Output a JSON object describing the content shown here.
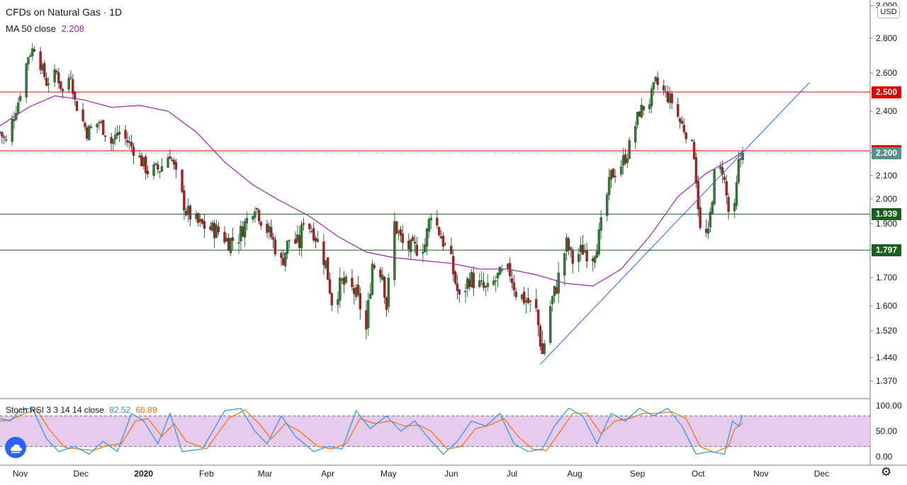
{
  "chart_header": {
    "title": "CFDs on Natural Gas · 1D",
    "ma_label": "MA 50 close",
    "ma_value": "2.208",
    "osc_label": "Stoch RSI 3 3 14 14 close",
    "osc_k": "82.52",
    "osc_d": "66.89",
    "currency": "USD"
  },
  "colors": {
    "up": "#26a69a",
    "up_body": "#2e7d32",
    "down": "#b71c1c",
    "ma": "#9c27b0",
    "trend": "#2962ff",
    "res_red": "#e00000",
    "sup_green": "#1b5e20",
    "price_tag": "#56918a",
    "stoch_k": "#2196f3",
    "stoch_d": "#ff6d00",
    "stoch_band": "#e1bee7"
  },
  "chart_data": [
    {
      "type": "candlestick",
      "title": "CFDs on Natural Gas · 1D",
      "y_ticks": [
        1.37,
        1.44,
        1.52,
        1.6,
        1.7,
        1.8,
        1.9,
        2.0,
        2.1,
        2.2,
        2.4,
        2.6,
        2.8,
        3.0
      ],
      "x_month_ticks": [
        {
          "label": "Nov",
          "month": "2019-11"
        },
        {
          "label": "Dec",
          "month": "2019-12"
        },
        {
          "label": "2020",
          "month": "2020-01"
        },
        {
          "label": "Feb",
          "month": "2020-02"
        },
        {
          "label": "Mar",
          "month": "2020-03"
        },
        {
          "label": "Apr",
          "month": "2020-04"
        },
        {
          "label": "May",
          "month": "2020-05"
        },
        {
          "label": "Jun",
          "month": "2020-06"
        },
        {
          "label": "Jul",
          "month": "2020-07"
        },
        {
          "label": "Aug",
          "month": "2020-08"
        },
        {
          "label": "Sep",
          "month": "2020-09"
        },
        {
          "label": "Oct",
          "month": "2020-10"
        },
        {
          "label": "Nov",
          "month": "2020-11"
        },
        {
          "label": "Dec",
          "month": "2020-12"
        }
      ],
      "price_close_path": [
        [
          "2019-10-22",
          2.3
        ],
        [
          "2019-10-25",
          2.25
        ],
        [
          "2019-10-31",
          2.45
        ],
        [
          "2019-11-05",
          2.7
        ],
        [
          "2019-11-08",
          2.75
        ],
        [
          "2019-11-14",
          2.55
        ],
        [
          "2019-11-19",
          2.6
        ],
        [
          "2019-11-22",
          2.5
        ],
        [
          "2019-11-26",
          2.6
        ],
        [
          "2019-11-28",
          2.45
        ],
        [
          "2019-12-04",
          2.3
        ],
        [
          "2019-12-10",
          2.35
        ],
        [
          "2019-12-16",
          2.25
        ],
        [
          "2019-12-20",
          2.3
        ],
        [
          "2019-12-27",
          2.22
        ],
        [
          "2020-01-03",
          2.12
        ],
        [
          "2020-01-09",
          2.13
        ],
        [
          "2020-01-14",
          2.2
        ],
        [
          "2020-01-17",
          2.1
        ],
        [
          "2020-01-22",
          1.95
        ],
        [
          "2020-01-28",
          1.9
        ],
        [
          "2020-02-03",
          1.88
        ],
        [
          "2020-02-07",
          1.87
        ],
        [
          "2020-02-12",
          1.83
        ],
        [
          "2020-02-17",
          1.85
        ],
        [
          "2020-02-20",
          1.9
        ],
        [
          "2020-02-25",
          1.98
        ],
        [
          "2020-02-28",
          1.92
        ],
        [
          "2020-03-04",
          1.85
        ],
        [
          "2020-03-09",
          1.75
        ],
        [
          "2020-03-13",
          1.84
        ],
        [
          "2020-03-18",
          1.82
        ],
        [
          "2020-03-20",
          1.92
        ],
        [
          "2020-03-25",
          1.87
        ],
        [
          "2020-03-31",
          1.75
        ],
        [
          "2020-04-03",
          1.62
        ],
        [
          "2020-04-08",
          1.68
        ],
        [
          "2020-04-14",
          1.65
        ],
        [
          "2020-04-17",
          1.6
        ],
        [
          "2020-04-20",
          1.52
        ],
        [
          "2020-04-23",
          1.75
        ],
        [
          "2020-04-28",
          1.72
        ],
        [
          "2020-04-30",
          1.6
        ],
        [
          "2020-05-04",
          1.9
        ],
        [
          "2020-05-08",
          1.82
        ],
        [
          "2020-05-13",
          1.8
        ],
        [
          "2020-05-19",
          1.82
        ],
        [
          "2020-05-22",
          1.95
        ],
        [
          "2020-05-27",
          1.85
        ],
        [
          "2020-06-01",
          1.75
        ],
        [
          "2020-06-05",
          1.62
        ],
        [
          "2020-06-10",
          1.7
        ],
        [
          "2020-06-15",
          1.67
        ],
        [
          "2020-06-19",
          1.65
        ],
        [
          "2020-06-24",
          1.7
        ],
        [
          "2020-06-30",
          1.72
        ],
        [
          "2020-07-03",
          1.65
        ],
        [
          "2020-07-08",
          1.62
        ],
        [
          "2020-07-13",
          1.58
        ],
        [
          "2020-07-16",
          1.45
        ],
        [
          "2020-07-20",
          1.6
        ],
        [
          "2020-07-23",
          1.67
        ],
        [
          "2020-07-28",
          1.82
        ],
        [
          "2020-07-31",
          1.76
        ],
        [
          "2020-08-05",
          1.8
        ],
        [
          "2020-08-10",
          1.78
        ],
        [
          "2020-08-13",
          1.85
        ],
        [
          "2020-08-19",
          2.1
        ],
        [
          "2020-08-24",
          2.15
        ],
        [
          "2020-08-27",
          2.2
        ],
        [
          "2020-09-02",
          2.4
        ],
        [
          "2020-09-07",
          2.45
        ],
        [
          "2020-09-10",
          2.55
        ],
        [
          "2020-09-14",
          2.5
        ],
        [
          "2020-09-18",
          2.45
        ],
        [
          "2020-09-22",
          2.35
        ],
        [
          "2020-09-25",
          2.3
        ],
        [
          "2020-09-29",
          2.2
        ],
        [
          "2020-10-02",
          1.87
        ],
        [
          "2020-10-06",
          1.85
        ],
        [
          "2020-10-09",
          2.1
        ],
        [
          "2020-10-13",
          2.13
        ],
        [
          "2020-10-16",
          1.95
        ],
        [
          "2020-10-19",
          1.95
        ],
        [
          "2020-10-21",
          2.15
        ],
        [
          "2020-10-23",
          2.2
        ]
      ],
      "ma50_path": [
        [
          "2019-10-22",
          2.33
        ],
        [
          "2019-11-05",
          2.42
        ],
        [
          "2019-11-18",
          2.48
        ],
        [
          "2019-12-02",
          2.46
        ],
        [
          "2019-12-16",
          2.42
        ],
        [
          "2019-12-30",
          2.43
        ],
        [
          "2020-01-13",
          2.4
        ],
        [
          "2020-01-27",
          2.3
        ],
        [
          "2020-02-10",
          2.16
        ],
        [
          "2020-02-24",
          2.06
        ],
        [
          "2020-03-09",
          1.99
        ],
        [
          "2020-03-23",
          1.93
        ],
        [
          "2020-04-06",
          1.85
        ],
        [
          "2020-04-20",
          1.79
        ],
        [
          "2020-05-04",
          1.77
        ],
        [
          "2020-05-18",
          1.76
        ],
        [
          "2020-06-01",
          1.75
        ],
        [
          "2020-06-15",
          1.73
        ],
        [
          "2020-06-29",
          1.73
        ],
        [
          "2020-07-13",
          1.71
        ],
        [
          "2020-07-27",
          1.68
        ],
        [
          "2020-08-10",
          1.67
        ],
        [
          "2020-08-24",
          1.73
        ],
        [
          "2020-09-07",
          1.85
        ],
        [
          "2020-09-21",
          2.01
        ],
        [
          "2020-10-05",
          2.11
        ],
        [
          "2020-10-19",
          2.18
        ],
        [
          "2020-10-23",
          2.208
        ]
      ],
      "trendline": [
        [
          "2020-07-15",
          1.42
        ],
        [
          "2020-11-25",
          2.55
        ]
      ],
      "horizontal_levels": [
        {
          "label": "2.500",
          "value": 2.5,
          "color": "#e00000"
        },
        {
          "label": "2.210",
          "value": 2.21,
          "color": "#e00000"
        },
        {
          "label": "1.939",
          "value": 1.939,
          "color": "#1b5e20"
        },
        {
          "label": "1.797",
          "value": 1.797,
          "color": "#1b5e20"
        }
      ],
      "last_price": {
        "label": "2.200",
        "value": 2.2
      }
    },
    {
      "type": "line",
      "title": "Stoch RSI 3 3 14 14 close",
      "y_ticks": [
        0,
        50,
        100
      ],
      "y_tick_labels": [
        "0.00",
        "50.00",
        "100.00"
      ],
      "band": [
        20,
        80
      ],
      "series": [
        {
          "name": "K",
          "last": 82.52
        },
        {
          "name": "D",
          "last": 66.89
        }
      ],
      "k_path": [
        [
          "2019-10-22",
          75
        ],
        [
          "2019-10-27",
          70
        ],
        [
          "2019-11-01",
          92
        ],
        [
          "2019-11-07",
          95
        ],
        [
          "2019-11-14",
          35
        ],
        [
          "2019-11-20",
          10
        ],
        [
          "2019-11-28",
          20
        ],
        [
          "2019-12-05",
          5
        ],
        [
          "2019-12-12",
          30
        ],
        [
          "2019-12-19",
          10
        ],
        [
          "2019-12-26",
          85
        ],
        [
          "2020-01-01",
          70
        ],
        [
          "2020-01-08",
          25
        ],
        [
          "2020-01-14",
          85
        ],
        [
          "2020-01-20",
          10
        ],
        [
          "2020-01-30",
          15
        ],
        [
          "2020-02-10",
          90
        ],
        [
          "2020-02-18",
          95
        ],
        [
          "2020-02-25",
          50
        ],
        [
          "2020-03-02",
          25
        ],
        [
          "2020-03-09",
          80
        ],
        [
          "2020-03-16",
          40
        ],
        [
          "2020-03-25",
          10
        ],
        [
          "2020-04-01",
          20
        ],
        [
          "2020-04-08",
          15
        ],
        [
          "2020-04-15",
          90
        ],
        [
          "2020-04-22",
          55
        ],
        [
          "2020-04-30",
          80
        ],
        [
          "2020-05-07",
          50
        ],
        [
          "2020-05-14",
          70
        ],
        [
          "2020-05-20",
          40
        ],
        [
          "2020-05-28",
          5
        ],
        [
          "2020-06-04",
          30
        ],
        [
          "2020-06-11",
          70
        ],
        [
          "2020-06-18",
          60
        ],
        [
          "2020-06-25",
          85
        ],
        [
          "2020-07-02",
          25
        ],
        [
          "2020-07-09",
          10
        ],
        [
          "2020-07-16",
          15
        ],
        [
          "2020-07-22",
          60
        ],
        [
          "2020-07-29",
          95
        ],
        [
          "2020-08-05",
          80
        ],
        [
          "2020-08-12",
          25
        ],
        [
          "2020-08-19",
          85
        ],
        [
          "2020-08-26",
          70
        ],
        [
          "2020-09-02",
          95
        ],
        [
          "2020-09-09",
          80
        ],
        [
          "2020-09-16",
          95
        ],
        [
          "2020-09-23",
          60
        ],
        [
          "2020-09-30",
          5
        ],
        [
          "2020-10-07",
          10
        ],
        [
          "2020-10-14",
          5
        ],
        [
          "2020-10-18",
          70
        ],
        [
          "2020-10-21",
          60
        ],
        [
          "2020-10-23",
          82.52
        ]
      ],
      "d_path": [
        [
          "2019-10-22",
          70
        ],
        [
          "2019-10-27",
          72
        ],
        [
          "2019-11-03",
          85
        ],
        [
          "2019-11-09",
          92
        ],
        [
          "2019-11-16",
          50
        ],
        [
          "2019-11-23",
          18
        ],
        [
          "2019-11-30",
          15
        ],
        [
          "2019-12-07",
          12
        ],
        [
          "2019-12-14",
          22
        ],
        [
          "2019-12-21",
          25
        ],
        [
          "2019-12-28",
          70
        ],
        [
          "2020-01-03",
          75
        ],
        [
          "2020-01-10",
          40
        ],
        [
          "2020-01-16",
          65
        ],
        [
          "2020-01-22",
          30
        ],
        [
          "2020-02-01",
          15
        ],
        [
          "2020-02-12",
          75
        ],
        [
          "2020-02-20",
          92
        ],
        [
          "2020-02-27",
          65
        ],
        [
          "2020-03-04",
          35
        ],
        [
          "2020-03-11",
          65
        ],
        [
          "2020-03-18",
          50
        ],
        [
          "2020-03-27",
          20
        ],
        [
          "2020-04-03",
          15
        ],
        [
          "2020-04-10",
          25
        ],
        [
          "2020-04-17",
          75
        ],
        [
          "2020-04-24",
          65
        ],
        [
          "2020-05-02",
          70
        ],
        [
          "2020-05-09",
          60
        ],
        [
          "2020-05-16",
          62
        ],
        [
          "2020-05-22",
          50
        ],
        [
          "2020-05-30",
          15
        ],
        [
          "2020-06-06",
          20
        ],
        [
          "2020-06-13",
          55
        ],
        [
          "2020-06-20",
          62
        ],
        [
          "2020-06-27",
          75
        ],
        [
          "2020-07-04",
          40
        ],
        [
          "2020-07-11",
          15
        ],
        [
          "2020-07-18",
          12
        ],
        [
          "2020-07-24",
          45
        ],
        [
          "2020-07-31",
          85
        ],
        [
          "2020-08-07",
          85
        ],
        [
          "2020-08-14",
          45
        ],
        [
          "2020-08-21",
          70
        ],
        [
          "2020-08-28",
          75
        ],
        [
          "2020-09-04",
          85
        ],
        [
          "2020-09-11",
          85
        ],
        [
          "2020-09-18",
          88
        ],
        [
          "2020-09-25",
          75
        ],
        [
          "2020-10-02",
          20
        ],
        [
          "2020-10-09",
          8
        ],
        [
          "2020-10-16",
          20
        ],
        [
          "2020-10-19",
          55
        ],
        [
          "2020-10-22",
          62
        ],
        [
          "2020-10-23",
          66.89
        ]
      ]
    }
  ]
}
